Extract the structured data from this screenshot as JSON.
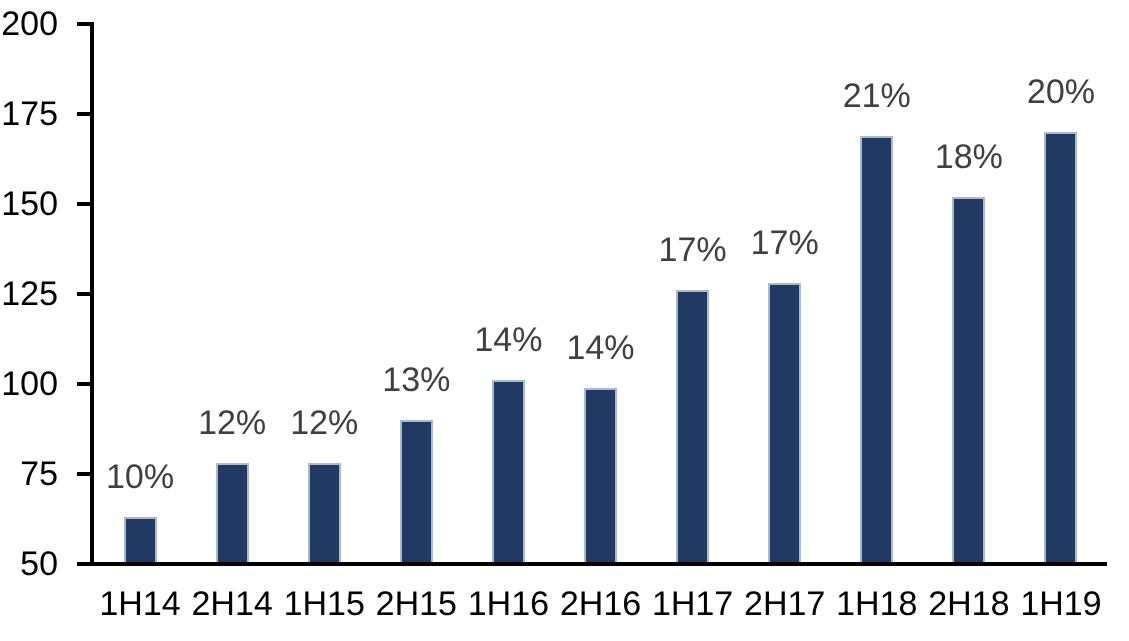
{
  "chart_data": {
    "type": "bar",
    "title": "",
    "xlabel": "",
    "ylabel": "",
    "categories": [
      "1H14",
      "2H14",
      "1H15",
      "2H15",
      "1H16",
      "2H16",
      "1H17",
      "2H17",
      "1H18",
      "2H18",
      "1H19"
    ],
    "values": [
      63,
      78,
      78,
      90,
      101,
      99,
      126,
      128,
      169,
      152,
      170
    ],
    "bar_labels": [
      "10%",
      "12%",
      "12%",
      "13%",
      "14%",
      "14%",
      "17%",
      "17%",
      "21%",
      "18%",
      "20%"
    ],
    "ylim": [
      50,
      200
    ],
    "ytick_step": 25,
    "yticks": [
      "200",
      "175",
      "150",
      "125",
      "100",
      "75",
      "50"
    ],
    "ytick_values": [
      200,
      175,
      150,
      125,
      100,
      75,
      50
    ],
    "grid": false,
    "legend": null,
    "colors": {
      "bar_fill": "#213A63",
      "bar_border": "#A9B9D0",
      "data_label": "#404040",
      "axis": "#000000",
      "background": "#FFFFFF"
    }
  }
}
